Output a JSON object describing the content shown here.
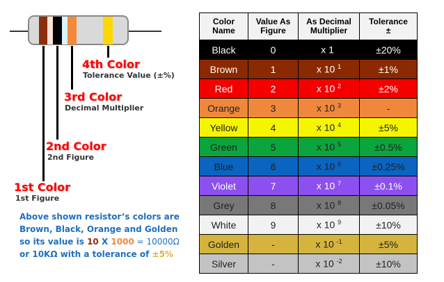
{
  "resistor": {
    "bands": [
      "#8b2e0b",
      "#000000",
      "#f5893a",
      "#ffd700"
    ],
    "body_color": "#d9d9d9"
  },
  "labels": [
    {
      "title": "4th Color",
      "subtitle": "Tolerance Value (±%)"
    },
    {
      "title": "3rd Color",
      "subtitle": "Decimal Multiplier"
    },
    {
      "title": "2nd Color",
      "subtitle": "2nd Figure"
    },
    {
      "title": "1st Color",
      "subtitle": "1st Figure"
    }
  ],
  "note": {
    "line1": "Above shown resistor’s colors are",
    "line2": "Brown, Black, Orange and Golden",
    "line3_a": "so its value is ",
    "line3_b": "10",
    "line3_c": " X ",
    "line3_d": "1000",
    "line3_e": " = 10000Ω",
    "line4_a": "or 10KΩ with a tolerance of ",
    "line4_b": "±5%"
  },
  "table": {
    "headers": [
      [
        "Color",
        "Name"
      ],
      [
        "Value As",
        "Figure"
      ],
      [
        "As Decimal",
        "Multiplier"
      ],
      [
        "Tolerance",
        "±"
      ]
    ],
    "rows": [
      {
        "name": "Black",
        "figure": "0",
        "base": "x 1",
        "exp": "",
        "tol": "±20%",
        "bg": "#000000",
        "fg": "#ffffff"
      },
      {
        "name": "Brown",
        "figure": "1",
        "base": "x 10",
        "exp": "1",
        "tol": "±1%",
        "bg": "#8b2a00",
        "fg": "#ffffff"
      },
      {
        "name": "Red",
        "figure": "2",
        "base": "x 10",
        "exp": "2",
        "tol": "±2%",
        "bg": "#f50000",
        "fg": "#ffffff"
      },
      {
        "name": "Orange",
        "figure": "3",
        "base": "x 10",
        "exp": "3",
        "tol": "-",
        "bg": "#f0883c",
        "fg": "#222222"
      },
      {
        "name": "Yellow",
        "figure": "4",
        "base": "x 10",
        "exp": "4",
        "tol": "±5%",
        "bg": "#f5f500",
        "fg": "#222222"
      },
      {
        "name": "Green",
        "figure": "5",
        "base": "x 10",
        "exp": "5",
        "tol": "±0.5%",
        "bg": "#0aa53c",
        "fg": "#222222"
      },
      {
        "name": "Blue",
        "figure": "6",
        "base": "x 10",
        "exp": "6",
        "tol": "±0.25%",
        "bg": "#0a64c0",
        "fg": "#222222"
      },
      {
        "name": "Violet",
        "figure": "7",
        "base": "x 10",
        "exp": "7",
        "tol": "±0.1%",
        "bg": "#8c50f0",
        "fg": "#ffffff"
      },
      {
        "name": "Grey",
        "figure": "8",
        "base": "x 10",
        "exp": "8",
        "tol": "±0.05%",
        "bg": "#787878",
        "fg": "#222222"
      },
      {
        "name": "White",
        "figure": "9",
        "base": "x 10",
        "exp": "9",
        "tol": "±10%",
        "bg": "#f2f2f2",
        "fg": "#222222"
      },
      {
        "name": "Golden",
        "figure": "-",
        "base": "x 10",
        "exp": "-1",
        "tol": "±5%",
        "bg": "#d4b43c",
        "fg": "#222222"
      },
      {
        "name": "Silver",
        "figure": "-",
        "base": "x 10",
        "exp": "-2",
        "tol": "±10%",
        "bg": "#c3c3c3",
        "fg": "#222222"
      }
    ]
  }
}
